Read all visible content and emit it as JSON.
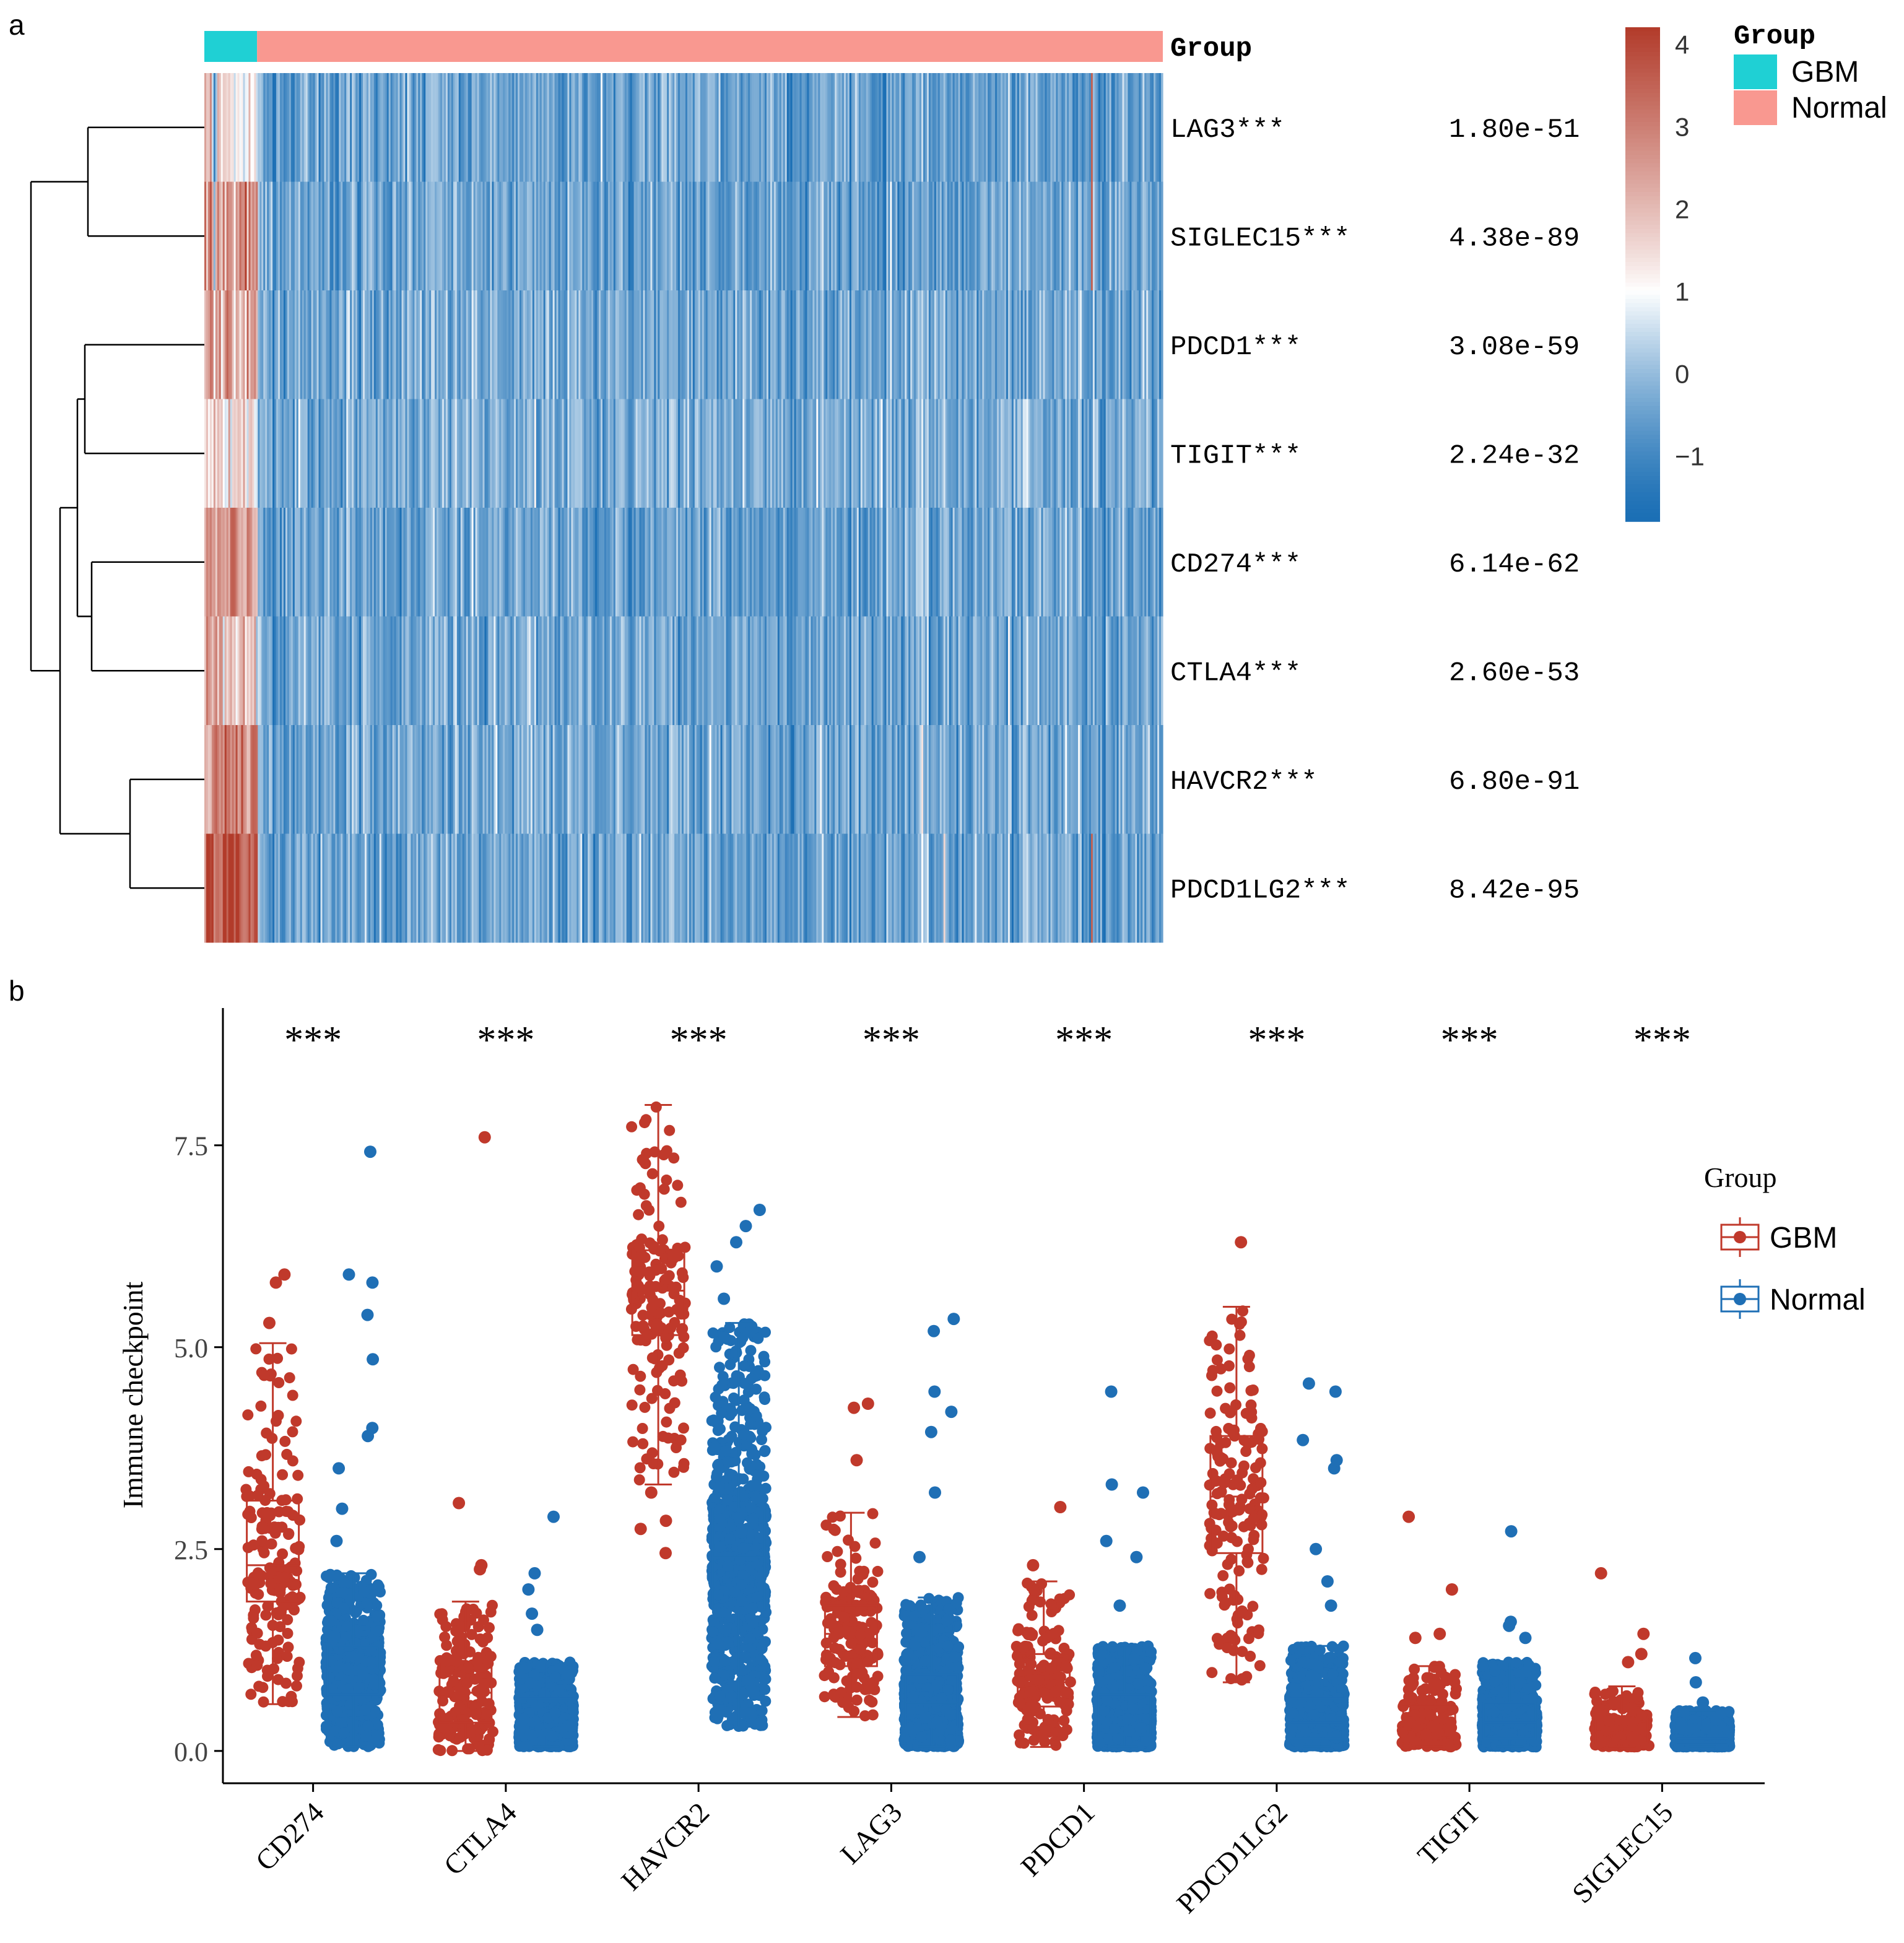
{
  "panels": {
    "a": "a",
    "b": "b"
  },
  "colors": {
    "gbm_annot": "#1fd0d4",
    "normal_annot": "#f99890",
    "heat_low": "#1b6fb5",
    "heat_mid": "#ffffff",
    "heat_high": "#b23b2a",
    "box_gbm": "#c0392b",
    "box_normal": "#1f6fb5"
  },
  "heatmap": {
    "annotation_label": "Group",
    "legend": {
      "title": "Group",
      "entries": [
        {
          "label": "GBM",
          "color": "#1fd0d4"
        },
        {
          "label": "Normal",
          "color": "#f99890"
        }
      ]
    },
    "colorbar_ticks": [
      "4",
      "3",
      "2",
      "1",
      "0",
      "−1"
    ],
    "colorbar_values": [
      4,
      3,
      2,
      1,
      0,
      -1
    ],
    "colorbar_range": [
      -1.8,
      4.2
    ],
    "group_proportions": {
      "GBM": 0.055,
      "Normal": 0.945
    },
    "rows": [
      {
        "gene": "LAG3***",
        "pvalue": "1.80e-51",
        "gbm_mean": 1.2,
        "normal_mean": -0.5
      },
      {
        "gene": "SIGLEC15***",
        "pvalue": "4.38e-89",
        "gbm_mean": 2.7,
        "normal_mean": -0.5
      },
      {
        "gene": "PDCD1***",
        "pvalue": "3.08e-59",
        "gbm_mean": 2.2,
        "normal_mean": -0.4
      },
      {
        "gene": "TIGIT***",
        "pvalue": "2.24e-32",
        "gbm_mean": 1.6,
        "normal_mean": -0.3
      },
      {
        "gene": "CD274***",
        "pvalue": "6.14e-62",
        "gbm_mean": 2.3,
        "normal_mean": -0.5
      },
      {
        "gene": "CTLA4***",
        "pvalue": "2.60e-53",
        "gbm_mean": 1.8,
        "normal_mean": -0.4
      },
      {
        "gene": "HAVCR2***",
        "pvalue": "6.80e-91",
        "gbm_mean": 3.0,
        "normal_mean": -0.4
      },
      {
        "gene": "PDCD1LG2***",
        "pvalue": "8.42e-95",
        "gbm_mean": 3.8,
        "normal_mean": -0.5
      }
    ]
  },
  "chart_data": {
    "type": "box",
    "title": "",
    "xlabel": "",
    "ylabel": "Immune checkpoint",
    "ylim": [
      -0.4,
      9.2
    ],
    "yticks": [
      0.0,
      2.5,
      5.0,
      7.5
    ],
    "ytick_labels": [
      "0.0",
      "2.5",
      "5.0",
      "7.5"
    ],
    "categories": [
      "CD274",
      "CTLA4",
      "HAVCR2",
      "LAG3",
      "PDCD1",
      "PDCD1LG2",
      "TIGIT",
      "SIGLEC15"
    ],
    "significance": [
      "***",
      "***",
      "***",
      "***",
      "***",
      "***",
      "***",
      "***"
    ],
    "legend": {
      "title": "Group",
      "position": "right",
      "entries": [
        "GBM",
        "Normal"
      ]
    },
    "series": [
      {
        "name": "GBM",
        "color": "#c0392b",
        "boxes": [
          {
            "min": 0.58,
            "q1": 1.85,
            "median": 2.3,
            "q3": 3.1,
            "max": 5.05,
            "outliers": [
              5.3,
              5.8,
              5.9
            ]
          },
          {
            "min": 0.0,
            "q1": 0.35,
            "median": 0.72,
            "q3": 1.1,
            "max": 1.85,
            "outliers": [
              2.25,
              2.3,
              3.07,
              7.6
            ]
          },
          {
            "min": 3.3,
            "q1": 5.15,
            "median": 5.7,
            "q3": 6.2,
            "max": 8.0,
            "outliers": [
              2.45,
              2.75,
              2.85,
              3.2
            ]
          },
          {
            "min": 0.42,
            "q1": 1.05,
            "median": 1.45,
            "q3": 1.8,
            "max": 2.95,
            "outliers": [
              3.6,
              4.25,
              4.3
            ]
          },
          {
            "min": 0.05,
            "q1": 0.55,
            "median": 0.85,
            "q3": 1.2,
            "max": 2.1,
            "outliers": [
              2.3,
              3.02
            ]
          },
          {
            "min": 0.85,
            "q1": 2.45,
            "median": 3.15,
            "q3": 3.9,
            "max": 5.5,
            "outliers": [
              6.3
            ]
          },
          {
            "min": 0.05,
            "q1": 0.12,
            "median": 0.3,
            "q3": 0.55,
            "max": 1.05,
            "outliers": [
              1.4,
              1.45,
              2.0,
              2.9
            ]
          },
          {
            "min": 0.05,
            "q1": 0.1,
            "median": 0.22,
            "q3": 0.4,
            "max": 0.8,
            "outliers": [
              1.1,
              1.2,
              1.45,
              2.2
            ]
          }
        ]
      },
      {
        "name": "Normal",
        "color": "#1f6fb5",
        "boxes": [
          {
            "min": 0.05,
            "q1": 0.7,
            "median": 1.0,
            "q3": 1.3,
            "max": 2.2,
            "outliers": [
              2.6,
              3.0,
              3.5,
              3.9,
              4.0,
              4.85,
              5.4,
              5.8,
              5.9,
              7.42
            ]
          },
          {
            "min": 0.05,
            "q1": 0.2,
            "median": 0.4,
            "q3": 0.65,
            "max": 1.1,
            "outliers": [
              1.5,
              1.7,
              2.0,
              2.2,
              2.9
            ]
          },
          {
            "min": 0.3,
            "q1": 1.75,
            "median": 2.4,
            "q3": 3.0,
            "max": 5.3,
            "outliers": [
              5.6,
              6.0,
              6.3,
              6.5,
              6.7
            ]
          },
          {
            "min": 0.05,
            "q1": 0.3,
            "median": 0.6,
            "q3": 0.95,
            "max": 1.9,
            "outliers": [
              2.4,
              3.2,
              3.95,
              4.2,
              4.45,
              5.2,
              5.35
            ]
          },
          {
            "min": 0.05,
            "q1": 0.2,
            "median": 0.4,
            "q3": 0.7,
            "max": 1.3,
            "outliers": [
              1.8,
              2.4,
              2.6,
              3.2,
              3.3,
              4.45
            ]
          },
          {
            "min": 0.05,
            "q1": 0.15,
            "median": 0.35,
            "q3": 0.65,
            "max": 1.3,
            "outliers": [
              1.8,
              2.1,
              2.5,
              3.5,
              3.6,
              3.85,
              4.45,
              4.55
            ]
          },
          {
            "min": 0.05,
            "q1": 0.15,
            "median": 0.35,
            "q3": 0.6,
            "max": 1.1,
            "outliers": [
              1.4,
              1.55,
              1.6,
              2.72
            ]
          },
          {
            "min": 0.05,
            "q1": 0.08,
            "median": 0.15,
            "q3": 0.3,
            "max": 0.5,
            "outliers": [
              0.6,
              0.85,
              1.15
            ]
          }
        ]
      }
    ]
  }
}
